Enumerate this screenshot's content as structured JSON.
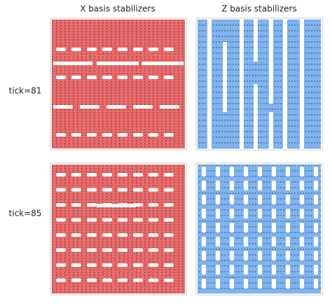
{
  "columns": [
    "X basis stabilizers",
    "Z basis stabilizers"
  ],
  "rows": [
    "tick=81",
    "tick=85"
  ]
}
